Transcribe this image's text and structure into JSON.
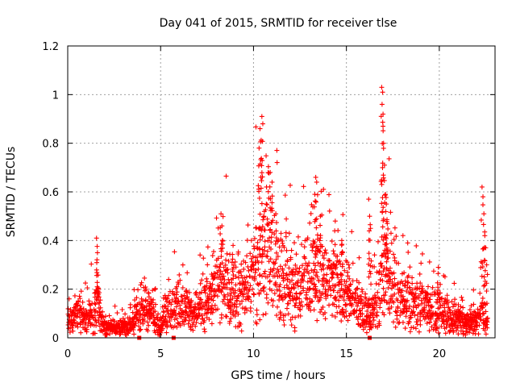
{
  "chart_data": {
    "type": "scatter",
    "title": "Day 041 of 2015, SRMTID for receiver tlse",
    "xlabel": "GPS time / hours",
    "ylabel": "SRMTID / TECUs",
    "xlim": [
      0,
      23
    ],
    "ylim": [
      0,
      1.2
    ],
    "x_ticks": [
      0,
      5,
      10,
      15,
      20
    ],
    "x_tick_labels": [
      "0",
      "5",
      "10",
      "15",
      "20"
    ],
    "y_ticks": [
      0,
      0.2,
      0.4,
      0.6,
      0.8,
      1.0,
      1.2
    ],
    "y_tick_labels": [
      "0",
      "0.2",
      "0.4",
      "0.6",
      "0.8",
      "1",
      "1.2"
    ],
    "grid": true,
    "marker": "+",
    "series": [
      {
        "name": "SRMTID",
        "color": "#ff0000",
        "baseline": [
          [
            0.0,
            0.05
          ],
          [
            0.2,
            0.07
          ],
          [
            0.5,
            0.09
          ],
          [
            0.8,
            0.08
          ],
          [
            1.1,
            0.07
          ],
          [
            1.4,
            0.1
          ],
          [
            1.6,
            0.14
          ],
          [
            1.8,
            0.06
          ],
          [
            2.0,
            0.04
          ],
          [
            2.5,
            0.04
          ],
          [
            3.0,
            0.04
          ],
          [
            3.5,
            0.05
          ],
          [
            3.8,
            0.1
          ],
          [
            4.2,
            0.11
          ],
          [
            4.6,
            0.08
          ],
          [
            5.0,
            0.05
          ],
          [
            5.3,
            0.1
          ],
          [
            5.8,
            0.12
          ],
          [
            6.3,
            0.11
          ],
          [
            6.8,
            0.1
          ],
          [
            7.2,
            0.12
          ],
          [
            7.6,
            0.17
          ],
          [
            8.0,
            0.19
          ],
          [
            8.4,
            0.21
          ],
          [
            8.8,
            0.18
          ],
          [
            9.2,
            0.17
          ],
          [
            9.6,
            0.19
          ],
          [
            10.0,
            0.26
          ],
          [
            10.3,
            0.3
          ],
          [
            10.6,
            0.38
          ],
          [
            10.9,
            0.33
          ],
          [
            11.3,
            0.26
          ],
          [
            11.6,
            0.22
          ],
          [
            12.0,
            0.2
          ],
          [
            12.4,
            0.18
          ],
          [
            12.8,
            0.22
          ],
          [
            13.2,
            0.24
          ],
          [
            13.6,
            0.25
          ],
          [
            14.0,
            0.22
          ],
          [
            14.5,
            0.21
          ],
          [
            14.9,
            0.19
          ],
          [
            15.3,
            0.15
          ],
          [
            15.7,
            0.12
          ],
          [
            16.0,
            0.1
          ],
          [
            16.4,
            0.11
          ],
          [
            16.8,
            0.16
          ],
          [
            17.2,
            0.22
          ],
          [
            17.6,
            0.19
          ],
          [
            18.0,
            0.14
          ],
          [
            18.5,
            0.14
          ],
          [
            19.0,
            0.12
          ],
          [
            19.5,
            0.11
          ],
          [
            20.0,
            0.1
          ],
          [
            20.5,
            0.08
          ],
          [
            21.0,
            0.07
          ],
          [
            21.5,
            0.06
          ],
          [
            22.0,
            0.06
          ],
          [
            22.3,
            0.1
          ],
          [
            22.6,
            0.05
          ]
        ],
        "spikes": [
          [
            1.55,
            0.41
          ],
          [
            1.6,
            0.35
          ],
          [
            1.65,
            0.2
          ],
          [
            8.25,
            0.51
          ],
          [
            8.3,
            0.46
          ],
          [
            8.9,
            0.38
          ],
          [
            10.3,
            0.78
          ],
          [
            10.35,
            0.86
          ],
          [
            10.45,
            0.91
          ],
          [
            10.5,
            0.88
          ],
          [
            10.7,
            0.62
          ],
          [
            10.9,
            0.68
          ],
          [
            11.0,
            0.64
          ],
          [
            11.2,
            0.51
          ],
          [
            13.35,
            0.66
          ],
          [
            13.4,
            0.64
          ],
          [
            13.3,
            0.59
          ],
          [
            13.6,
            0.5
          ],
          [
            14.4,
            0.48
          ],
          [
            14.75,
            0.4
          ],
          [
            16.2,
            0.57
          ],
          [
            16.25,
            0.5
          ],
          [
            16.3,
            0.45
          ],
          [
            16.9,
            1.03
          ],
          [
            16.95,
            1.01
          ],
          [
            16.92,
            0.96
          ],
          [
            16.97,
            0.87
          ],
          [
            17.0,
            0.8
          ],
          [
            17.05,
            0.71
          ],
          [
            17.1,
            0.59
          ],
          [
            17.15,
            0.55
          ],
          [
            17.2,
            0.47
          ],
          [
            17.4,
            0.43
          ],
          [
            18.3,
            0.39
          ],
          [
            19.95,
            0.29
          ],
          [
            22.3,
            0.62
          ],
          [
            22.35,
            0.58
          ],
          [
            22.4,
            0.51
          ],
          [
            22.45,
            0.42
          ],
          [
            22.5,
            0.37
          ],
          [
            22.55,
            0.3
          ]
        ],
        "axis_markers": [
          [
            3.85,
            0.0
          ],
          [
            5.7,
            0.0
          ],
          [
            16.25,
            0.0
          ]
        ]
      }
    ]
  }
}
